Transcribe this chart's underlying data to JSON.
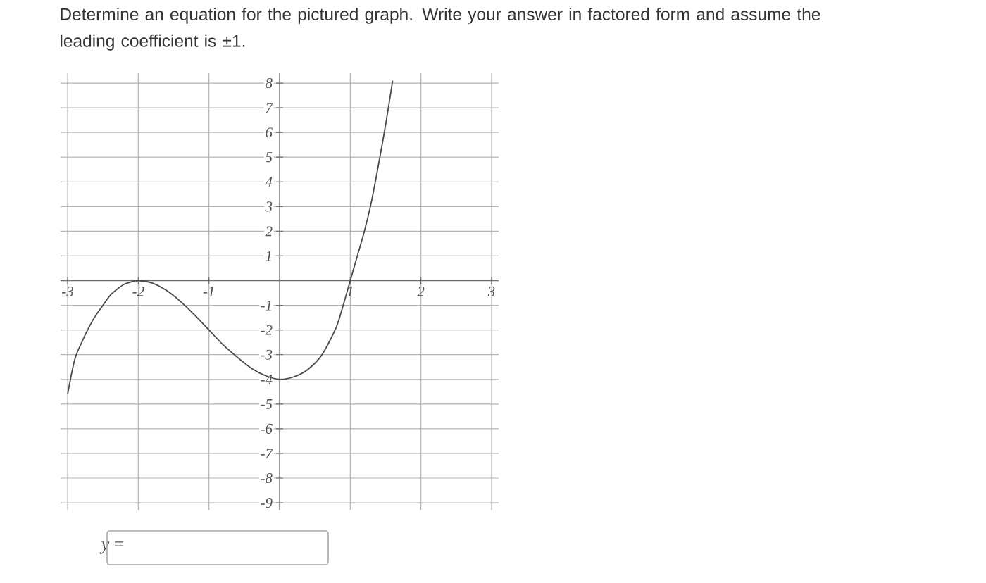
{
  "chart_data": {
    "type": "line",
    "title": "Determine an equation for the pictured graph. Write your answer in factored form and assume the leading coefficient is ±1.",
    "x": [
      -3.0,
      -2.9,
      -2.8,
      -2.7,
      -2.6,
      -2.5,
      -2.4,
      -2.3,
      -2.2,
      -2.1,
      -2.0,
      -1.8,
      -1.6,
      -1.4,
      -1.2,
      -1.0,
      -0.8,
      -0.6,
      -0.4,
      -0.2,
      0.0,
      0.2,
      0.4,
      0.6,
      0.8,
      0.9,
      1.0,
      1.1,
      1.2,
      1.3,
      1.4,
      1.5,
      1.6
    ],
    "values": [
      -4.6,
      -3.2,
      -2.5,
      -1.9,
      -1.4,
      -1.0,
      -0.6,
      -0.35,
      -0.15,
      -0.05,
      0.0,
      -0.1,
      -0.4,
      -0.85,
      -1.4,
      -2.0,
      -2.6,
      -3.1,
      -3.55,
      -3.85,
      -4.0,
      -3.9,
      -3.6,
      -3.0,
      -1.9,
      -1.0,
      0.0,
      1.0,
      2.0,
      3.2,
      4.7,
      6.3,
      8.1
    ],
    "color": "#4a4a4a",
    "line_style": "solid",
    "xlim": [
      -3.1,
      3.1
    ],
    "ylim": [
      -9.3,
      8.4
    ],
    "xticks": [
      -3,
      -2,
      -1,
      1,
      2,
      3
    ],
    "yticks": [
      -9,
      -8,
      -7,
      -6,
      -5,
      -4,
      -3,
      -2,
      -1,
      1,
      2,
      3,
      4,
      5,
      6,
      7,
      8
    ],
    "grid": true,
    "annotations": [
      "*y* ="
    ]
  }
}
